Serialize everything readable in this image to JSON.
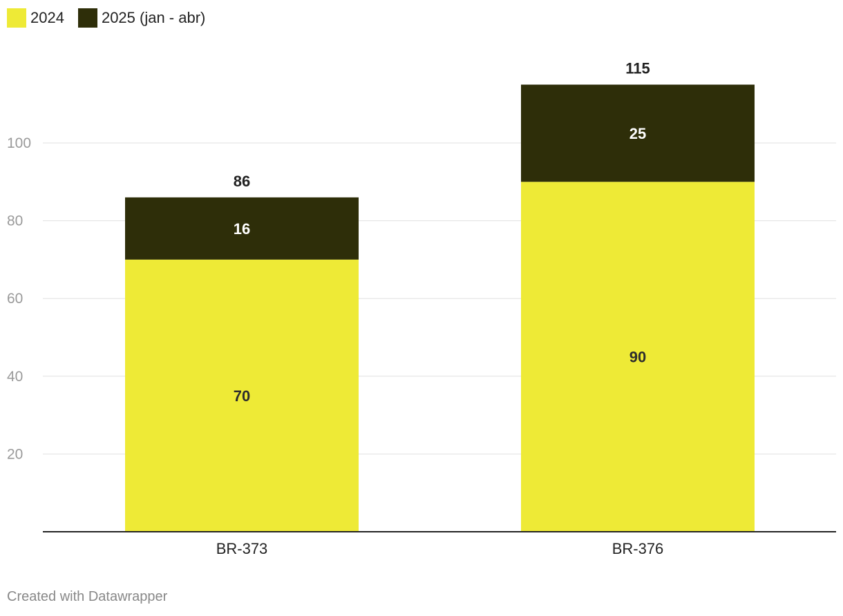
{
  "colors": {
    "series_2024": "#eeea36",
    "series_2025": "#2e2e09",
    "grid": "#e0e0e0",
    "axis": "#222222",
    "tick_label": "#9a9a9a",
    "label_dark": "#2d2d2d",
    "label_light": "#ffffff",
    "footer": "#888888"
  },
  "legend": {
    "items": [
      {
        "label": "2024",
        "color": "#eeea36"
      },
      {
        "label": "2025 (jan - abr)",
        "color": "#2e2e09"
      }
    ],
    "placement": "top-left"
  },
  "chart_data": {
    "type": "bar",
    "stacked": true,
    "title": "",
    "xlabel": "",
    "ylabel": "",
    "categories": [
      "BR-373",
      "BR-376"
    ],
    "series": [
      {
        "name": "2024",
        "values": [
          70,
          90
        ],
        "color": "#eeea36"
      },
      {
        "name": "2025 (jan - abr)",
        "values": [
          16,
          25
        ],
        "color": "#2e2e09"
      }
    ],
    "totals": [
      86,
      115
    ],
    "ylim": [
      0,
      115
    ],
    "yticks": [
      20,
      40,
      60,
      80,
      100
    ],
    "grid": true
  },
  "footer": {
    "credit": "Created with Datawrapper"
  }
}
